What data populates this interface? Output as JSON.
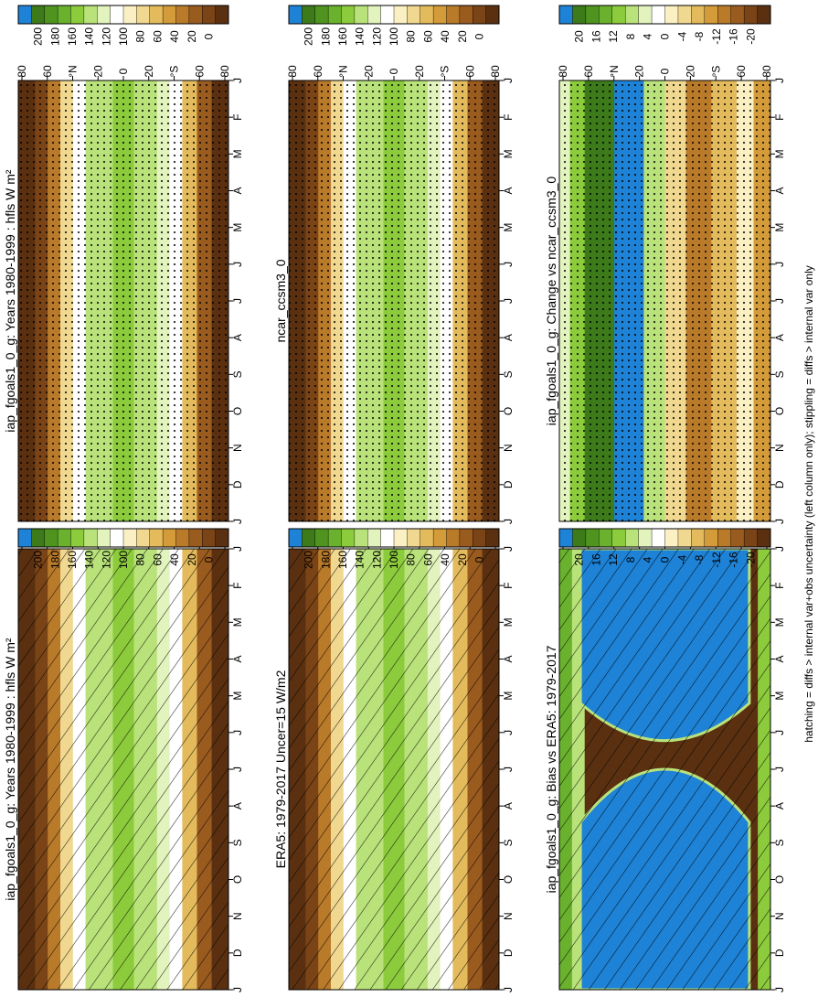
{
  "footnote": "hatching = diffs > internal var+obs uncertainty (left column only); stippling = diffs > internal var only",
  "months": [
    "J",
    "F",
    "M",
    "A",
    "M",
    "J",
    "J",
    "A",
    "S",
    "O",
    "N",
    "D",
    "J"
  ],
  "lat_ticks": [
    "80",
    "60",
    "°N",
    "20",
    "0",
    "20",
    "°S",
    "60",
    "80"
  ],
  "scale_abs": [
    "200",
    "180",
    "160",
    "140",
    "120",
    "100",
    "80",
    "60",
    "40",
    "20",
    "0"
  ],
  "scale_diff": [
    "20",
    "16",
    "12",
    "8",
    "4",
    "0",
    "-4",
    "-8",
    "-12",
    "-16",
    "-20"
  ],
  "colors": {
    "scale": [
      "#1e82d6",
      "#3c7a1a",
      "#4e941f",
      "#6ab12e",
      "#8ccb3c",
      "#b9e27a",
      "#e2f3bd",
      "#ffffff",
      "#fbf0c4",
      "#f0d890",
      "#e3bb5c",
      "#d39b3a",
      "#b97a2a",
      "#9a5b1f",
      "#7a4416",
      "#5a3010"
    ]
  },
  "chart_data": [
    {
      "type": "heatmap",
      "panel": "left-top",
      "title": "iap_fgoals1_0_g: Years 1980-1999 : hfls W m²",
      "units": "W m²",
      "scale": "abs",
      "pattern": "hatch"
    },
    {
      "type": "heatmap",
      "panel": "left-middle",
      "title": "ERA5: 1979-2017 Uncer=15 W/m2",
      "scale": "abs",
      "pattern": "hatch"
    },
    {
      "type": "heatmap",
      "panel": "left-bottom",
      "title": "iap_fgoals1_0_g: Bias vs ERA5: 1979-2017",
      "scale": "diff",
      "pattern": "hatch"
    },
    {
      "type": "heatmap",
      "panel": "right-top",
      "title": "iap_fgoals1_0_g: Years 1980-1999 : hfls W m²",
      "units": "W m²",
      "scale": "abs",
      "pattern": "stipple"
    },
    {
      "type": "heatmap",
      "panel": "right-middle",
      "title": "ncar_ccsm3_0",
      "scale": "abs",
      "pattern": "stipple"
    },
    {
      "type": "heatmap",
      "panel": "right-bottom",
      "title": "iap_fgoals1_0_g: Change vs ncar_ccsm3_0",
      "scale": "diff",
      "pattern": "stipple"
    }
  ]
}
